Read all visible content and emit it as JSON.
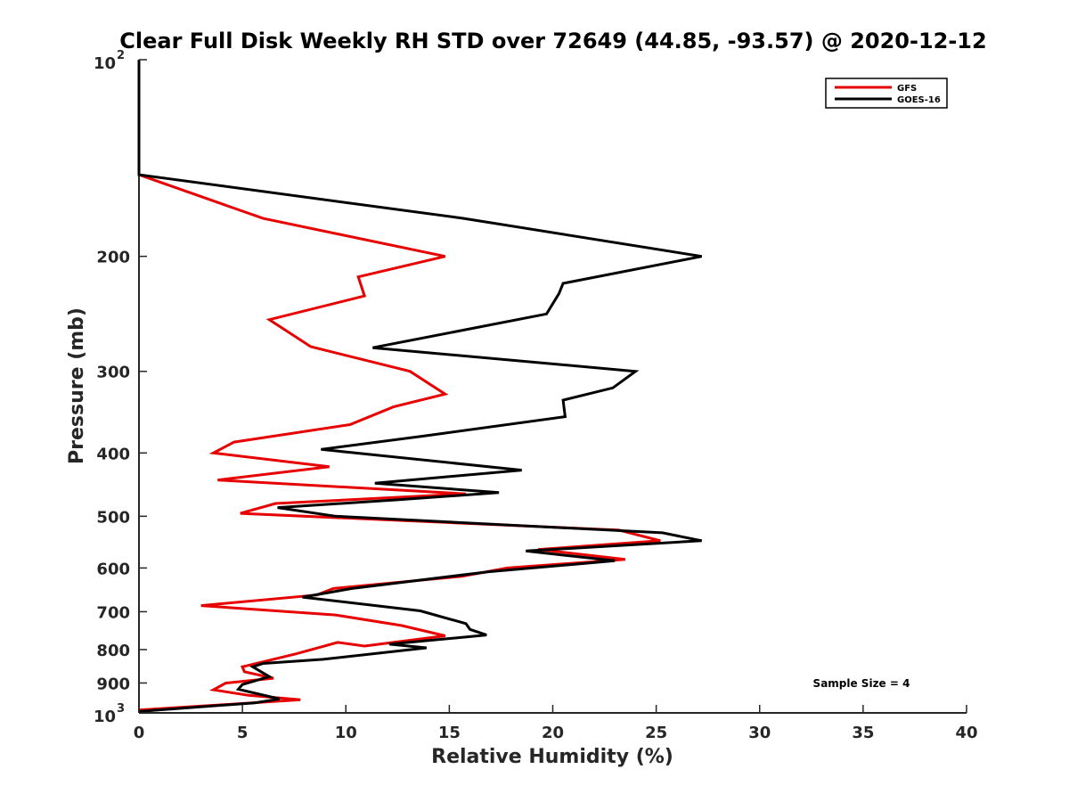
{
  "chart_data": {
    "type": "line",
    "title": "Clear Full Disk Weekly RH STD over 72649 (44.85, -93.57) @ 2020-12-12",
    "xlabel": "Relative Humidity (%)",
    "ylabel": "Pressure (mb)",
    "xlim": [
      0,
      40
    ],
    "ylim": [
      100,
      1000
    ],
    "y_scale": "log",
    "y_reversed": true,
    "x_ticks": [
      0,
      5,
      10,
      15,
      20,
      25,
      30,
      35,
      40
    ],
    "y_ticks": [
      {
        "value": 100,
        "base": "10",
        "sup": "2"
      },
      {
        "value": 200,
        "label": "200"
      },
      {
        "value": 300,
        "label": "300"
      },
      {
        "value": 400,
        "label": "400"
      },
      {
        "value": 500,
        "label": "500"
      },
      {
        "value": 600,
        "label": "600"
      },
      {
        "value": 700,
        "label": "700"
      },
      {
        "value": 800,
        "label": "800"
      },
      {
        "value": 900,
        "label": "900"
      },
      {
        "value": 1000,
        "base": "10",
        "sup": "3"
      }
    ],
    "grid": false,
    "legend_position": "top-right",
    "annotation": "Sample Size = 4",
    "series": [
      {
        "name": "GFS",
        "color": "#e60000",
        "points": [
          [
            0,
            100
          ],
          [
            0,
            150
          ],
          [
            6,
            175
          ],
          [
            14.8,
            200
          ],
          [
            10.6,
            215
          ],
          [
            10.9,
            230
          ],
          [
            6.3,
            250
          ],
          [
            8.3,
            275
          ],
          [
            13.1,
            300
          ],
          [
            14.8,
            325
          ],
          [
            12.3,
            340
          ],
          [
            10.2,
            362
          ],
          [
            4.6,
            385
          ],
          [
            3.6,
            400
          ],
          [
            9.2,
            420
          ],
          [
            3.8,
            440
          ],
          [
            15.8,
            462
          ],
          [
            6.6,
            478
          ],
          [
            4.9,
            495
          ],
          [
            23.2,
            525
          ],
          [
            25.2,
            545
          ],
          [
            19.3,
            562
          ],
          [
            23.5,
            582
          ],
          [
            17.8,
            600
          ],
          [
            15.6,
            618
          ],
          [
            9.4,
            645
          ],
          [
            8.6,
            660
          ],
          [
            3.0,
            685
          ],
          [
            9.5,
            708
          ],
          [
            12.7,
            735
          ],
          [
            14.8,
            762
          ],
          [
            10.9,
            790
          ],
          [
            9.6,
            780
          ],
          [
            7.6,
            812
          ],
          [
            5.0,
            850
          ],
          [
            5.1,
            865
          ],
          [
            6.5,
            885
          ],
          [
            4.2,
            900
          ],
          [
            3.6,
            922
          ],
          [
            5.3,
            940
          ],
          [
            7.8,
            955
          ],
          [
            0,
            990
          ]
        ]
      },
      {
        "name": "GOES-16",
        "color": "#000000",
        "points": [
          [
            0,
            100
          ],
          [
            0,
            150
          ],
          [
            15.7,
            175
          ],
          [
            27.2,
            200
          ],
          [
            20.5,
            220
          ],
          [
            20.3,
            228
          ],
          [
            19.7,
            245
          ],
          [
            11.3,
            276
          ],
          [
            24.0,
            300
          ],
          [
            22.9,
            318
          ],
          [
            20.5,
            332
          ],
          [
            20.6,
            352
          ],
          [
            13.7,
            377
          ],
          [
            8.8,
            395
          ],
          [
            18.5,
            425
          ],
          [
            11.4,
            445
          ],
          [
            17.4,
            460
          ],
          [
            12.4,
            472
          ],
          [
            6.7,
            485
          ],
          [
            9.5,
            500
          ],
          [
            25.3,
            530
          ],
          [
            27.2,
            545
          ],
          [
            18.7,
            565
          ],
          [
            23.0,
            585
          ],
          [
            16.9,
            608
          ],
          [
            10.3,
            645
          ],
          [
            7.9,
            665
          ],
          [
            13.6,
            698
          ],
          [
            15.8,
            730
          ],
          [
            16.0,
            745
          ],
          [
            16.8,
            760
          ],
          [
            12.1,
            785
          ],
          [
            13.9,
            795
          ],
          [
            8.9,
            828
          ],
          [
            6.0,
            840
          ],
          [
            5.5,
            850
          ],
          [
            6.3,
            880
          ],
          [
            5.0,
            905
          ],
          [
            4.8,
            920
          ],
          [
            6.8,
            952
          ],
          [
            5.6,
            965
          ],
          [
            0,
            995
          ]
        ]
      }
    ]
  }
}
